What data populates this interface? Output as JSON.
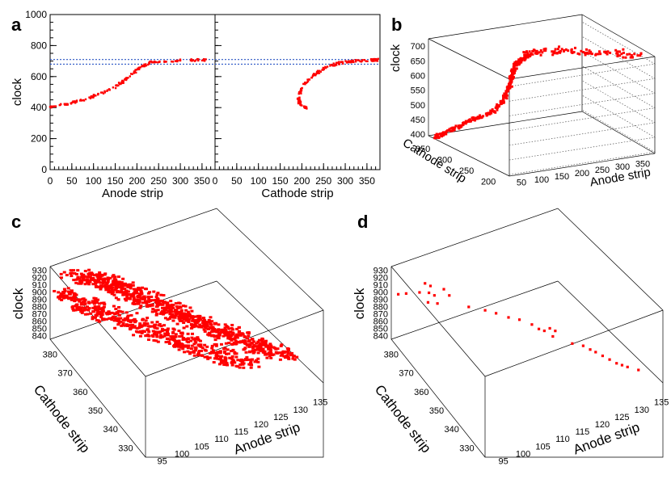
{
  "chart_data": [
    {
      "id": "a",
      "panel_label": "a",
      "type": "scatter",
      "ylabel": "clock",
      "ylim": [
        0,
        1000
      ],
      "yticks": [
        "0",
        "200",
        "400",
        "600",
        "800",
        "1000"
      ],
      "reference_lines_clock": [
        680,
        710
      ],
      "subplots": [
        {
          "xlabel": "Anode strip",
          "xlim": [
            0,
            380
          ],
          "xticks": [
            "0",
            "50",
            "100",
            "150",
            "200",
            "250",
            "300",
            "350"
          ],
          "track": [
            [
              0,
              405
            ],
            [
              40,
              425
            ],
            [
              80,
              450
            ],
            [
              110,
              485
            ],
            [
              140,
              515
            ],
            [
              165,
              560
            ],
            [
              190,
              620
            ],
            [
              210,
              665
            ],
            [
              230,
              690
            ],
            [
              260,
              700
            ],
            [
              300,
              705
            ],
            [
              360,
              708
            ]
          ]
        },
        {
          "xlabel": "Cathode strip",
          "xlim": [
            0,
            380
          ],
          "xticks": [
            "0",
            "50",
            "100",
            "150",
            "200",
            "250",
            "300",
            "350"
          ],
          "track": [
            [
              212,
              395
            ],
            [
              195,
              430
            ],
            [
              192,
              470
            ],
            [
              200,
              530
            ],
            [
              215,
              580
            ],
            [
              235,
              625
            ],
            [
              260,
              665
            ],
            [
              290,
              690
            ],
            [
              320,
              700
            ],
            [
              360,
              706
            ],
            [
              378,
              708
            ]
          ]
        }
      ]
    },
    {
      "id": "b",
      "panel_label": "b",
      "type": "scatter3d",
      "xlabel": "Anode strip",
      "ylabel": "Cathode strip",
      "zlabel": "clock",
      "xticks": [
        "50",
        "100",
        "150",
        "200",
        "250",
        "300",
        "350"
      ],
      "yticks": [
        "200",
        "250",
        "300",
        "350"
      ],
      "zticks": [
        "400",
        "450",
        "500",
        "550",
        "600",
        "650",
        "700"
      ],
      "xlim": [
        20,
        380
      ],
      "ylim": [
        195,
        380
      ],
      "zlim": [
        395,
        725
      ],
      "track": [
        [
          20,
          210,
          400
        ],
        [
          60,
          215,
          425
        ],
        [
          100,
          220,
          450
        ],
        [
          140,
          230,
          475
        ],
        [
          160,
          235,
          510
        ],
        [
          170,
          240,
          560
        ],
        [
          172,
          245,
          600
        ],
        [
          175,
          250,
          640
        ],
        [
          180,
          255,
          660
        ],
        [
          200,
          265,
          690
        ],
        [
          240,
          290,
          705
        ],
        [
          300,
          320,
          712
        ],
        [
          360,
          360,
          720
        ]
      ]
    },
    {
      "id": "c",
      "panel_label": "c",
      "type": "scatter3d",
      "xlabel": "Anode strip",
      "ylabel": "Cathode strip",
      "zlabel": "clock",
      "xticks": [
        "95",
        "100",
        "105",
        "110",
        "115",
        "120",
        "125",
        "130",
        "135"
      ],
      "yticks": [
        "330",
        "340",
        "350",
        "360",
        "370",
        "380"
      ],
      "zticks": [
        "840",
        "850",
        "860",
        "870",
        "880",
        "890",
        "900",
        "910",
        "920",
        "930"
      ],
      "xlim": [
        92,
        137
      ],
      "ylim": [
        325,
        388
      ],
      "zlim": [
        835,
        935
      ],
      "tracks": [
        [
          [
            93,
            385,
            905
          ],
          [
            98,
            382,
            890
          ],
          [
            103,
            378,
            880
          ],
          [
            108,
            372,
            870
          ],
          [
            113,
            366,
            860
          ],
          [
            118,
            360,
            852
          ],
          [
            123,
            352,
            845
          ],
          [
            128,
            344,
            840
          ]
        ],
        [
          [
            96,
            388,
            918
          ],
          [
            101,
            384,
            905
          ],
          [
            106,
            379,
            894
          ],
          [
            111,
            374,
            882
          ],
          [
            116,
            368,
            870
          ],
          [
            121,
            361,
            860
          ],
          [
            126,
            353,
            850
          ],
          [
            131,
            346,
            842
          ]
        ],
        [
          [
            99,
            387,
            916
          ],
          [
            104,
            383,
            902
          ],
          [
            109,
            378,
            890
          ],
          [
            114,
            372,
            878
          ],
          [
            119,
            366,
            866
          ],
          [
            124,
            359,
            856
          ],
          [
            129,
            351,
            847
          ],
          [
            134,
            344,
            840
          ]
        ],
        [
          [
            95,
            380,
            895
          ],
          [
            100,
            376,
            883
          ],
          [
            105,
            371,
            872
          ],
          [
            110,
            365,
            862
          ],
          [
            115,
            359,
            853
          ],
          [
            120,
            352,
            846
          ],
          [
            125,
            345,
            841
          ]
        ],
        [
          [
            102,
            386,
            912
          ],
          [
            107,
            381,
            899
          ],
          [
            112,
            376,
            887
          ],
          [
            117,
            370,
            875
          ],
          [
            122,
            363,
            864
          ],
          [
            127,
            356,
            854
          ],
          [
            132,
            349,
            845
          ],
          [
            136,
            342,
            840
          ]
        ]
      ]
    },
    {
      "id": "d",
      "panel_label": "d",
      "type": "scatter3d",
      "xlabel": "Anode strip",
      "ylabel": "Cathode strip",
      "zlabel": "clock",
      "xticks": [
        "95",
        "100",
        "105",
        "110",
        "115",
        "120",
        "125",
        "130",
        "135"
      ],
      "yticks": [
        "330",
        "340",
        "350",
        "360",
        "370",
        "380"
      ],
      "zticks": [
        "840",
        "850",
        "860",
        "870",
        "880",
        "890",
        "900",
        "910",
        "920",
        "930"
      ],
      "xlim": [
        92,
        137
      ],
      "ylim": [
        325,
        388
      ],
      "zlim": [
        835,
        935
      ],
      "points": [
        [
          93,
          386,
          900
        ],
        [
          95,
          386,
          897
        ],
        [
          99,
          384,
          908
        ],
        [
          100,
          383,
          905
        ],
        [
          98,
          385,
          895
        ],
        [
          100,
          384,
          893
        ],
        [
          101,
          383,
          890
        ],
        [
          99,
          382,
          887
        ],
        [
          101,
          381,
          884
        ],
        [
          103,
          382,
          897
        ],
        [
          104,
          381,
          889
        ],
        [
          107,
          376,
          880
        ],
        [
          110,
          373,
          877
        ],
        [
          112,
          371,
          874
        ],
        [
          114,
          368,
          872
        ],
        [
          116,
          366,
          870
        ],
        [
          118,
          363,
          867
        ],
        [
          119,
          361,
          864
        ],
        [
          120,
          360,
          862
        ],
        [
          121,
          359,
          866
        ],
        [
          122,
          358,
          863
        ],
        [
          121,
          357,
          860
        ],
        [
          124,
          352,
          857
        ],
        [
          126,
          350,
          855
        ],
        [
          127,
          348,
          853
        ],
        [
          128,
          347,
          850
        ],
        [
          129,
          345,
          848
        ],
        [
          130,
          343,
          846
        ],
        [
          131,
          341,
          844
        ],
        [
          132,
          340,
          842
        ],
        [
          133,
          339,
          840
        ],
        [
          135,
          337,
          837
        ]
      ]
    }
  ]
}
